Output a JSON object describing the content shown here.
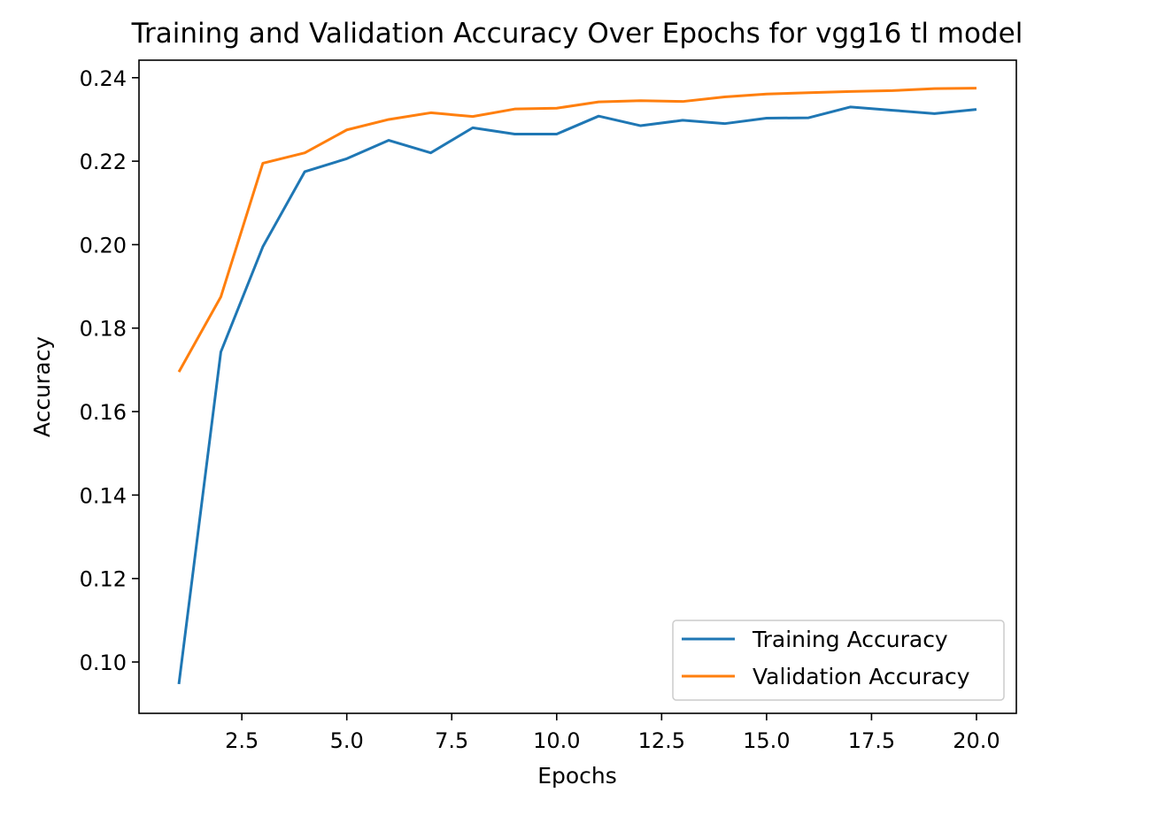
{
  "chart_data": {
    "type": "line",
    "title": "Training and Validation Accuracy Over Epochs for vgg16 tl model",
    "xlabel": "Epochs",
    "ylabel": "Accuracy",
    "xlim": [
      0.05,
      20.95
    ],
    "ylim": [
      0.0877,
      0.2442
    ],
    "xticks": [
      2.5,
      5.0,
      7.5,
      10.0,
      12.5,
      15.0,
      17.5,
      20.0
    ],
    "xtick_labels": [
      "2.5",
      "5.0",
      "7.5",
      "10.0",
      "12.5",
      "15.0",
      "17.5",
      "20.0"
    ],
    "yticks": [
      0.1,
      0.12,
      0.14,
      0.16,
      0.18,
      0.2,
      0.22,
      0.24
    ],
    "ytick_labels": [
      "0.10",
      "0.12",
      "0.14",
      "0.16",
      "0.18",
      "0.20",
      "0.22",
      "0.24"
    ],
    "grid": false,
    "legend_position": "lower-right",
    "x": [
      1,
      2,
      3,
      4,
      5,
      6,
      7,
      8,
      9,
      10,
      11,
      12,
      13,
      14,
      15,
      16,
      17,
      18,
      19,
      20
    ],
    "series": [
      {
        "name": "Training Accuracy",
        "color": "#1f77b4",
        "values": [
          0.0947,
          0.1743,
          0.1995,
          0.2175,
          0.2206,
          0.225,
          0.222,
          0.228,
          0.2265,
          0.2265,
          0.2308,
          0.2285,
          0.2298,
          0.229,
          0.2303,
          0.2304,
          0.233,
          0.2322,
          0.2314,
          0.2324
        ]
      },
      {
        "name": "Validation Accuracy",
        "color": "#ff7f0e",
        "values": [
          0.1695,
          0.1875,
          0.2195,
          0.222,
          0.2275,
          0.23,
          0.2316,
          0.2307,
          0.2325,
          0.2327,
          0.2342,
          0.2345,
          0.2343,
          0.2354,
          0.2361,
          0.2364,
          0.2367,
          0.2369,
          0.2374,
          0.2375
        ]
      }
    ]
  }
}
